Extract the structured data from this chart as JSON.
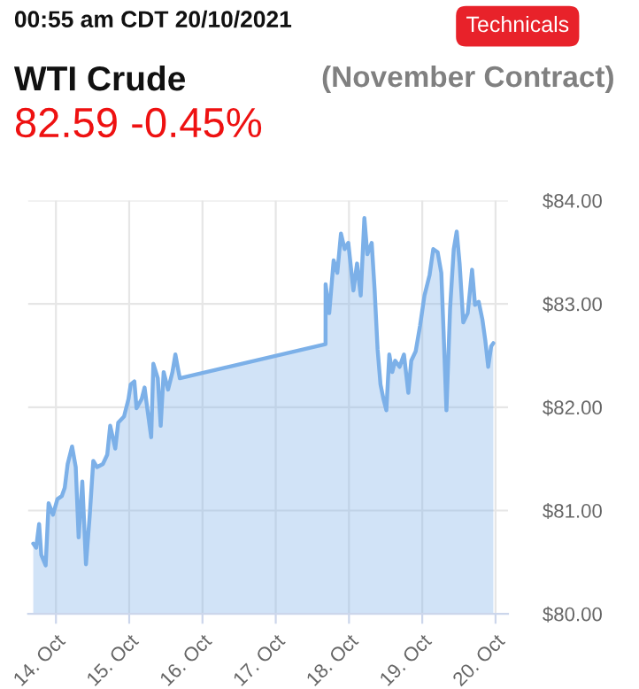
{
  "chart_data": {
    "type": "area",
    "title": "WTI Crude",
    "subtitle": "(November Contract)",
    "annotations": [
      "00:55 am CDT 20/10/2021",
      "Technicals",
      "82.59 -0.45%"
    ],
    "series": [
      {
        "color": "#7cb0e8",
        "x": [
          "2021-10-13T16:34",
          "2021-10-13T17:31",
          "2021-10-13T18:29",
          "2021-10-13T19:12",
          "2021-10-13T20:38",
          "2021-10-13T21:36",
          "2021-10-13T23:02",
          "2021-10-14T00:29",
          "2021-10-14T01:55",
          "2021-10-14T02:53",
          "2021-10-14T03:50",
          "2021-10-14T05:17",
          "2021-10-14T06:29",
          "2021-10-14T07:26",
          "2021-10-14T08:38",
          "2021-10-14T09:50",
          "2021-10-14T11:02",
          "2021-10-14T12:14",
          "2021-10-14T13:26",
          "2021-10-14T15:22",
          "2021-10-14T16:48",
          "2021-10-14T17:46",
          "2021-10-14T19:26",
          "2021-10-14T20:24",
          "2021-10-14T22:19",
          "2021-10-14T23:46",
          "2021-10-15T00:29",
          "2021-10-15T01:41",
          "2021-10-15T02:24",
          "2021-10-15T04:05",
          "2021-10-15T05:02",
          "2021-10-15T06:00",
          "2021-10-15T07:12",
          "2021-10-15T07:55",
          "2021-10-15T09:22",
          "2021-10-15T10:19",
          "2021-10-15T11:17",
          "2021-10-15T12:43",
          "2021-10-15T14:10",
          "2021-10-15T15:07",
          "2021-10-15T16:34",
          "2021-10-17T16:19",
          "2021-10-17T16:20",
          "2021-10-17T17:31",
          "2021-10-17T18:58",
          "2021-10-17T20:10",
          "2021-10-17T21:22",
          "2021-10-17T22:34",
          "2021-10-17T23:46",
          "2021-10-18T01:26",
          "2021-10-18T02:38",
          "2021-10-18T03:50",
          "2021-10-18T05:02",
          "2021-10-18T06:00",
          "2021-10-18T07:26",
          "2021-10-18T08:24",
          "2021-10-18T09:22",
          "2021-10-18T10:19",
          "2021-10-18T11:17",
          "2021-10-18T12:14",
          "2021-10-18T13:12",
          "2021-10-18T14:10",
          "2021-10-18T15:07",
          "2021-10-18T16:34",
          "2021-10-18T18:00",
          "2021-10-18T19:26",
          "2021-10-18T20:24",
          "2021-10-18T21:50",
          "2021-10-18T23:17",
          "2021-10-19T00:43",
          "2021-10-19T02:24",
          "2021-10-19T03:36",
          "2021-10-19T05:02",
          "2021-10-19T06:14",
          "2021-10-19T06:58",
          "2021-10-19T07:55",
          "2021-10-19T09:07",
          "2021-10-19T10:19",
          "2021-10-19T11:17",
          "2021-10-19T12:14",
          "2021-10-19T13:26",
          "2021-10-19T14:53",
          "2021-10-19T16:19",
          "2021-10-19T17:17",
          "2021-10-19T18:29",
          "2021-10-19T19:41",
          "2021-10-19T20:38",
          "2021-10-19T21:36",
          "2021-10-19T22:34",
          "2021-10-19T23:17"
        ],
        "values": [
          80.68,
          80.64,
          80.87,
          80.57,
          80.47,
          81.07,
          80.96,
          81.11,
          81.14,
          81.22,
          81.45,
          81.62,
          81.42,
          80.74,
          81.28,
          80.48,
          80.94,
          81.48,
          81.42,
          81.45,
          81.54,
          81.82,
          81.6,
          81.85,
          81.91,
          82.08,
          82.22,
          82.25,
          81.99,
          82.08,
          82.19,
          81.97,
          81.71,
          82.42,
          82.28,
          81.82,
          82.34,
          82.17,
          82.34,
          82.51,
          82.28,
          82.61,
          83.19,
          82.91,
          83.42,
          83.3,
          83.68,
          83.53,
          83.59,
          83.13,
          83.39,
          83.08,
          83.83,
          83.48,
          83.59,
          83.13,
          82.56,
          82.22,
          82.08,
          81.97,
          82.51,
          82.34,
          82.45,
          82.39,
          82.51,
          82.14,
          82.45,
          82.54,
          82.79,
          83.08,
          83.28,
          83.53,
          83.5,
          83.3,
          82.74,
          81.97,
          82.96,
          83.53,
          83.7,
          83.39,
          82.82,
          82.91,
          83.33,
          82.99,
          83.02,
          82.85,
          82.65,
          82.39,
          82.59,
          82.62
        ]
      }
    ],
    "xlim": [
      "2021-10-13T14:53",
      "2021-10-20T04:05"
    ],
    "xticks": [
      {
        "value": "2021-10-14",
        "label": "14. Oct"
      },
      {
        "value": "2021-10-15",
        "label": "15. Oct"
      },
      {
        "value": "2021-10-16",
        "label": "16. Oct"
      },
      {
        "value": "2021-10-17",
        "label": "17. Oct"
      },
      {
        "value": "2021-10-18",
        "label": "18. Oct"
      },
      {
        "value": "2021-10-19",
        "label": "19. Oct"
      },
      {
        "value": "2021-10-20",
        "label": "20. Oct"
      }
    ],
    "ylim": [
      80,
      84
    ],
    "yticks": [
      {
        "value": 80,
        "label": "$80.00"
      },
      {
        "value": 81,
        "label": "$81.00"
      },
      {
        "value": 82,
        "label": "$82.00"
      },
      {
        "value": 83,
        "label": "$83.00"
      },
      {
        "value": 84,
        "label": "$84.00"
      }
    ],
    "grid": true
  }
}
